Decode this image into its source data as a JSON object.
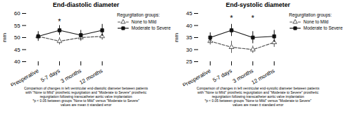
{
  "chart_data": [
    {
      "type": "line",
      "title": "End-diastolic diameter",
      "ylabel": "mm",
      "ylim": [
        40,
        60
      ],
      "yticks": [
        40,
        45,
        50,
        55,
        60
      ],
      "categories": [
        "Preoperative",
        "5-7 days",
        "3 months",
        "12 months"
      ],
      "series": [
        {
          "name": "None to Mild",
          "color": "#555555",
          "marker": "triangle",
          "line_style": "dashed",
          "values": [
            50.5,
            48.5,
            50.0,
            50.5
          ],
          "errors": [
            1.5,
            1.5,
            1.5,
            1.5
          ]
        },
        {
          "name": "Moderate to Severe",
          "color": "#111111",
          "marker": "square",
          "line_style": "solid",
          "values": [
            50.5,
            53.0,
            51.0,
            53.0
          ],
          "errors": [
            2.0,
            2.0,
            2.0,
            2.5
          ]
        }
      ],
      "annotations": [
        {
          "text": "*",
          "x": "5-7 days",
          "y": 56.5
        }
      ],
      "legend": "upper right",
      "legend_title": "Regurgitation groups:",
      "caption": "Comparison of changes in left ventricular end-diastolic diameter between patients\nwith \"None to Mild\" prosthetic regurgitation and \"Moderate to Severe\" prosthetic\nregurgitation following transcatheter aortic valve implantation\n*p < 0.05 between groups \"None to Mild\" versus \"Moderate to Severe\"\nvalues are mean ± standard error"
    },
    {
      "type": "line",
      "title": "End-systolic diameter",
      "ylabel": "mm",
      "ylim": [
        25,
        45
      ],
      "yticks": [
        25,
        30,
        35,
        40,
        45
      ],
      "categories": [
        "Preoperative",
        "5-7 days",
        "3 months",
        "12 months"
      ],
      "series": [
        {
          "name": "None to Mild",
          "color": "#555555",
          "marker": "triangle",
          "line_style": "dashed",
          "values": [
            33.5,
            31.0,
            30.0,
            33.0
          ],
          "errors": [
            1.5,
            2.5,
            1.5,
            2.0
          ]
        },
        {
          "name": "Moderate to Severe",
          "color": "#111111",
          "marker": "square",
          "line_style": "solid",
          "values": [
            35.0,
            38.0,
            35.0,
            35.5
          ],
          "errors": [
            2.0,
            2.5,
            2.5,
            2.5
          ]
        }
      ],
      "annotations": [
        {
          "text": "*",
          "x": "5-7 days",
          "y": 43.0
        },
        {
          "text": "*",
          "x": "3 months",
          "y": 43.0
        }
      ],
      "legend": "upper right",
      "legend_title": "Regurgitation groups:",
      "caption": "Comparison of changes in left ventricular end-systolic diameter between patients\nwith \"None to Mild\" prosthetic regurgitation and \"Moderate to Severe\" prosthetic\nregurgitation following transcatheter aortic valve implantation\n*p < 0.05 between groups \"None to Mild\" versus \"Moderate to Severe\"\nvalues are mean ± standard error"
    }
  ]
}
